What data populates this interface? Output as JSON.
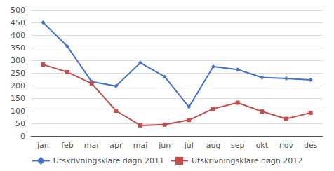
{
  "chart_data": {
    "type": "line",
    "categories": [
      "jan",
      "feb",
      "mar",
      "apr",
      "mai",
      "jun",
      "jul",
      "aug",
      "sep",
      "okt",
      "nov",
      "des"
    ],
    "series": [
      {
        "name": "Utskrivningsklare døgn 2011",
        "color": "#4472C4",
        "marker": "diamond",
        "values": [
          450,
          355,
          215,
          198,
          290,
          235,
          115,
          275,
          263,
          232,
          228,
          222
        ]
      },
      {
        "name": "Utskrivningsklare døgn 2012",
        "color": "#C0504D",
        "marker": "square",
        "values": [
          283,
          253,
          208,
          100,
          42,
          45,
          63,
          108,
          132,
          97,
          68,
          92
        ]
      }
    ],
    "ylim": [
      0,
      500
    ],
    "yticks": [
      0,
      50,
      100,
      150,
      200,
      250,
      300,
      350,
      400,
      450,
      500
    ],
    "grid": true,
    "legend": "bottom"
  }
}
